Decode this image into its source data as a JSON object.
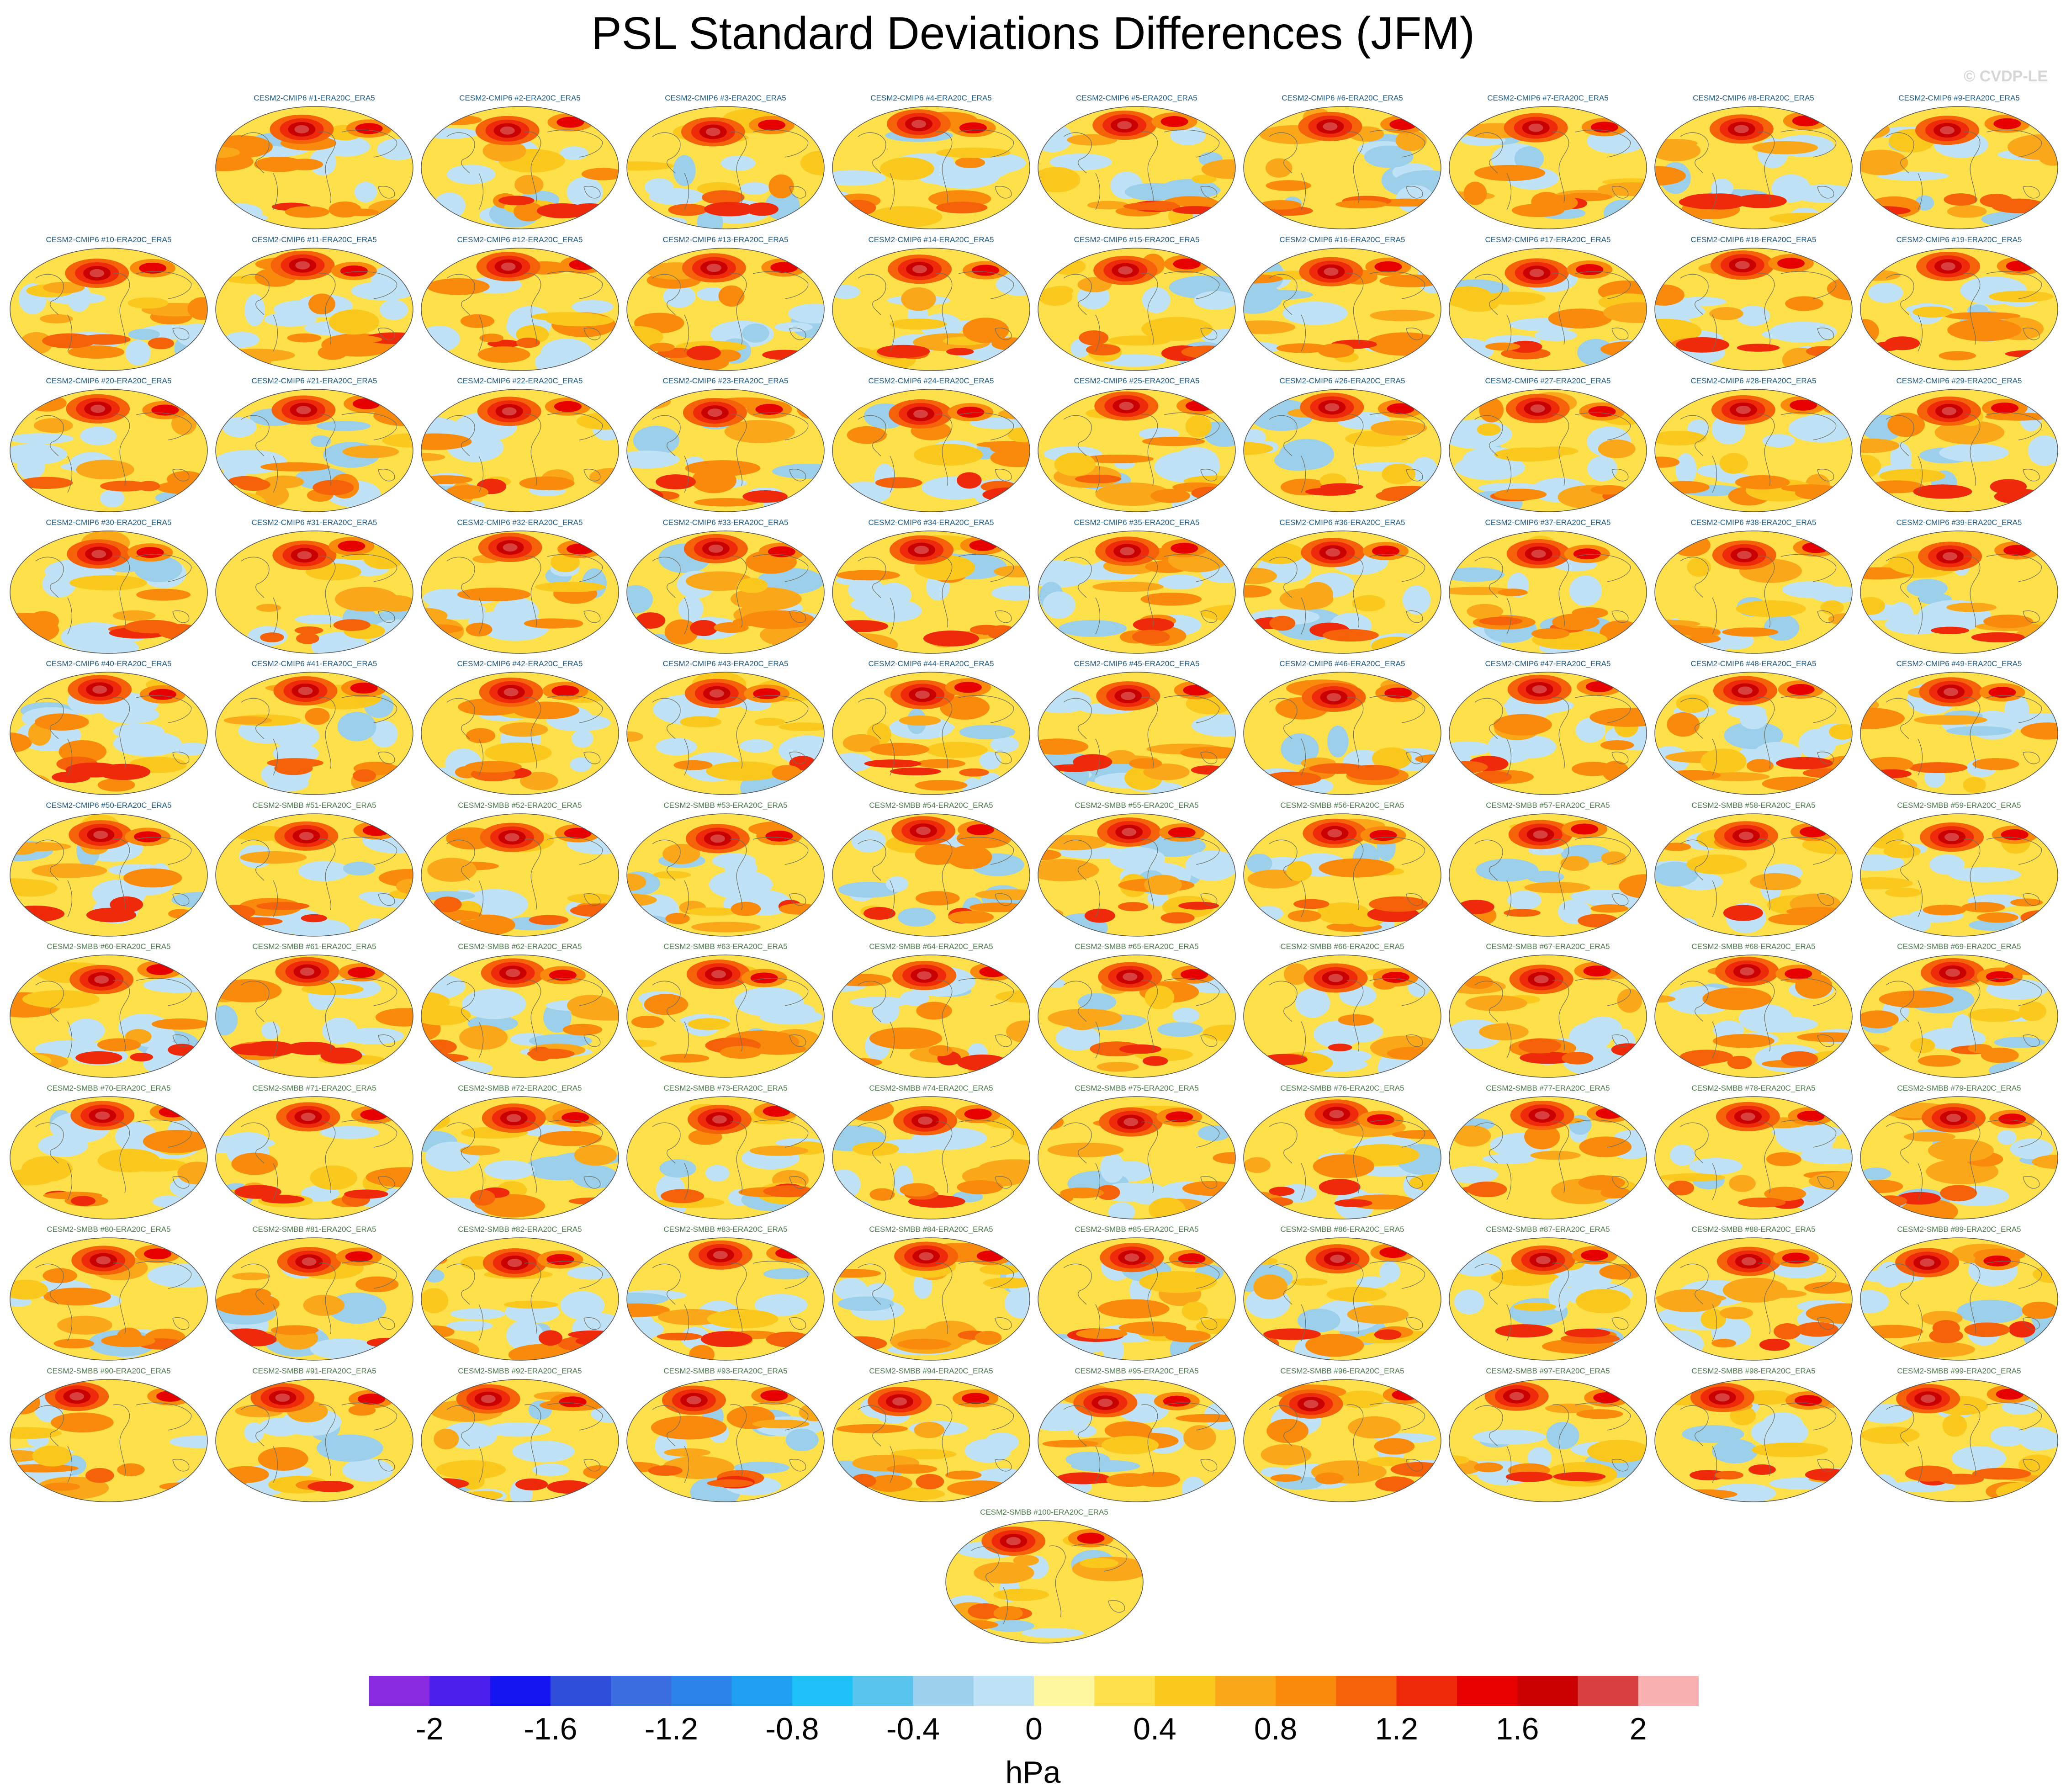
{
  "title": "PSL Standard Deviations Differences (JFM)",
  "watermark": "© CVDP-LE",
  "chart_data": {
    "type": "heatmap",
    "title": "PSL Standard Deviations Differences (JFM)",
    "description_panels": "100 ensemble-member map panels (Hammer/Mollweide projection), each showing model minus ERA20C_ERA5 PSL standard deviation difference",
    "panels": [
      "CESM2-CMIP6 #1-ERA20C_ERA5",
      "CESM2-CMIP6 #2-ERA20C_ERA5",
      "CESM2-CMIP6 #3-ERA20C_ERA5",
      "CESM2-CMIP6 #4-ERA20C_ERA5",
      "CESM2-CMIP6 #5-ERA20C_ERA5",
      "CESM2-CMIP6 #6-ERA20C_ERA5",
      "CESM2-CMIP6 #7-ERA20C_ERA5",
      "CESM2-CMIP6 #8-ERA20C_ERA5",
      "CESM2-CMIP6 #9-ERA20C_ERA5",
      "CESM2-CMIP6 #10-ERA20C_ERA5",
      "CESM2-CMIP6 #11-ERA20C_ERA5",
      "CESM2-CMIP6 #12-ERA20C_ERA5",
      "CESM2-CMIP6 #13-ERA20C_ERA5",
      "CESM2-CMIP6 #14-ERA20C_ERA5",
      "CESM2-CMIP6 #15-ERA20C_ERA5",
      "CESM2-CMIP6 #16-ERA20C_ERA5",
      "CESM2-CMIP6 #17-ERA20C_ERA5",
      "CESM2-CMIP6 #18-ERA20C_ERA5",
      "CESM2-CMIP6 #19-ERA20C_ERA5",
      "CESM2-CMIP6 #20-ERA20C_ERA5",
      "CESM2-CMIP6 #21-ERA20C_ERA5",
      "CESM2-CMIP6 #22-ERA20C_ERA5",
      "CESM2-CMIP6 #23-ERA20C_ERA5",
      "CESM2-CMIP6 #24-ERA20C_ERA5",
      "CESM2-CMIP6 #25-ERA20C_ERA5",
      "CESM2-CMIP6 #26-ERA20C_ERA5",
      "CESM2-CMIP6 #27-ERA20C_ERA5",
      "CESM2-CMIP6 #28-ERA20C_ERA5",
      "CESM2-CMIP6 #29-ERA20C_ERA5",
      "CESM2-CMIP6 #30-ERA20C_ERA5",
      "CESM2-CMIP6 #31-ERA20C_ERA5",
      "CESM2-CMIP6 #32-ERA20C_ERA5",
      "CESM2-CMIP6 #33-ERA20C_ERA5",
      "CESM2-CMIP6 #34-ERA20C_ERA5",
      "CESM2-CMIP6 #35-ERA20C_ERA5",
      "CESM2-CMIP6 #36-ERA20C_ERA5",
      "CESM2-CMIP6 #37-ERA20C_ERA5",
      "CESM2-CMIP6 #38-ERA20C_ERA5",
      "CESM2-CMIP6 #39-ERA20C_ERA5",
      "CESM2-CMIP6 #40-ERA20C_ERA5",
      "CESM2-CMIP6 #41-ERA20C_ERA5",
      "CESM2-CMIP6 #42-ERA20C_ERA5",
      "CESM2-CMIP6 #43-ERA20C_ERA5",
      "CESM2-CMIP6 #44-ERA20C_ERA5",
      "CESM2-CMIP6 #45-ERA20C_ERA5",
      "CESM2-CMIP6 #46-ERA20C_ERA5",
      "CESM2-CMIP6 #47-ERA20C_ERA5",
      "CESM2-CMIP6 #48-ERA20C_ERA5",
      "CESM2-CMIP6 #49-ERA20C_ERA5",
      "CESM2-CMIP6 #50-ERA20C_ERA5",
      "CESM2-SMBB #51-ERA20C_ERA5",
      "CESM2-SMBB #52-ERA20C_ERA5",
      "CESM2-SMBB #53-ERA20C_ERA5",
      "CESM2-SMBB #54-ERA20C_ERA5",
      "CESM2-SMBB #55-ERA20C_ERA5",
      "CESM2-SMBB #56-ERA20C_ERA5",
      "CESM2-SMBB #57-ERA20C_ERA5",
      "CESM2-SMBB #58-ERA20C_ERA5",
      "CESM2-SMBB #59-ERA20C_ERA5",
      "CESM2-SMBB #60-ERA20C_ERA5",
      "CESM2-SMBB #61-ERA20C_ERA5",
      "CESM2-SMBB #62-ERA20C_ERA5",
      "CESM2-SMBB #63-ERA20C_ERA5",
      "CESM2-SMBB #64-ERA20C_ERA5",
      "CESM2-SMBB #65-ERA20C_ERA5",
      "CESM2-SMBB #66-ERA20C_ERA5",
      "CESM2-SMBB #67-ERA20C_ERA5",
      "CESM2-SMBB #68-ERA20C_ERA5",
      "CESM2-SMBB #69-ERA20C_ERA5",
      "CESM2-SMBB #70-ERA20C_ERA5",
      "CESM2-SMBB #71-ERA20C_ERA5",
      "CESM2-SMBB #72-ERA20C_ERA5",
      "CESM2-SMBB #73-ERA20C_ERA5",
      "CESM2-SMBB #74-ERA20C_ERA5",
      "CESM2-SMBB #75-ERA20C_ERA5",
      "CESM2-SMBB #76-ERA20C_ERA5",
      "CESM2-SMBB #77-ERA20C_ERA5",
      "CESM2-SMBB #78-ERA20C_ERA5",
      "CESM2-SMBB #79-ERA20C_ERA5",
      "CESM2-SMBB #80-ERA20C_ERA5",
      "CESM2-SMBB #81-ERA20C_ERA5",
      "CESM2-SMBB #82-ERA20C_ERA5",
      "CESM2-SMBB #83-ERA20C_ERA5",
      "CESM2-SMBB #84-ERA20C_ERA5",
      "CESM2-SMBB #85-ERA20C_ERA5",
      "CESM2-SMBB #86-ERA20C_ERA5",
      "CESM2-SMBB #87-ERA20C_ERA5",
      "CESM2-SMBB #88-ERA20C_ERA5",
      "CESM2-SMBB #89-ERA20C_ERA5",
      "CESM2-SMBB #90-ERA20C_ERA5",
      "CESM2-SMBB #91-ERA20C_ERA5",
      "CESM2-SMBB #92-ERA20C_ERA5",
      "CESM2-SMBB #93-ERA20C_ERA5",
      "CESM2-SMBB #94-ERA20C_ERA5",
      "CESM2-SMBB #95-ERA20C_ERA5",
      "CESM2-SMBB #96-ERA20C_ERA5",
      "CESM2-SMBB #97-ERA20C_ERA5",
      "CESM2-SMBB #98-ERA20C_ERA5",
      "CESM2-SMBB #99-ERA20C_ERA5",
      "CESM2-SMBB #100-ERA20C_ERA5"
    ],
    "colorbar": {
      "unit": "hPa",
      "levels": [
        -2.2,
        -2.0,
        -1.8,
        -1.6,
        -1.4,
        -1.2,
        -1.0,
        -0.8,
        -0.6,
        -0.4,
        -0.2,
        0,
        0.2,
        0.4,
        0.6,
        0.8,
        1.0,
        1.2,
        1.4,
        1.6,
        1.8,
        2.0,
        2.2
      ],
      "tick_labels": [
        "-2",
        "-1.6",
        "-1.2",
        "-0.8",
        "-0.4",
        "0",
        "0.4",
        "0.8",
        "1.2",
        "1.6",
        "2"
      ],
      "tick_values": [
        -2,
        -1.6,
        -1.2,
        -0.8,
        -0.4,
        0,
        0.4,
        0.8,
        1.2,
        1.6,
        2
      ],
      "colors": [
        "#8a2be2",
        "#4b1eea",
        "#1414f0",
        "#2f4ed9",
        "#3a6ee0",
        "#2a84ea",
        "#1fa0f2",
        "#1ec0f8",
        "#58c4ee",
        "#9ccfea",
        "#bfe2f6",
        "#fff7a0",
        "#fde04a",
        "#fbc81e",
        "#faa81a",
        "#f98a0c",
        "#f5620a",
        "#ef2a0a",
        "#e60000",
        "#c80000",
        "#d84040",
        "#f9b0b0"
      ]
    }
  }
}
